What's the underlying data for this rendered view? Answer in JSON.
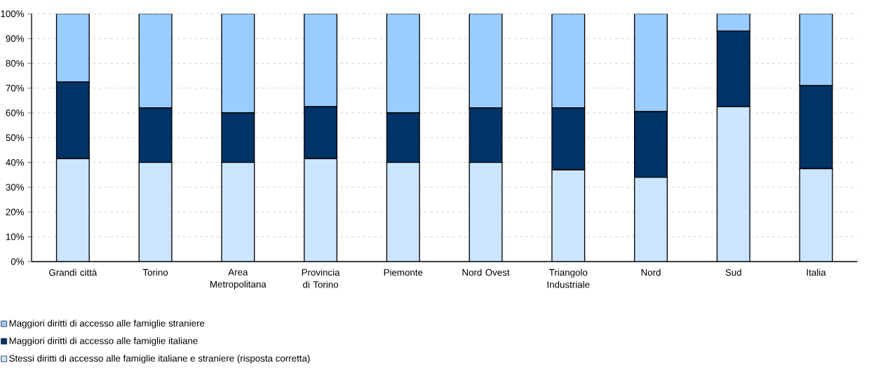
{
  "chart_data": {
    "type": "bar",
    "stacked": true,
    "categories": [
      "Grandi città",
      "Torino",
      "Area Metropolitana",
      "Provincia di Torino",
      "Piemonte",
      "Nord Ovest",
      "Triangolo Industriale",
      "Nord",
      "Sud",
      "Italia"
    ],
    "series": [
      {
        "name": "Stessi diritti di accesso alle famiglie italiane e straniere (risposta corretta)",
        "color": "#cce5ff",
        "values": [
          41.5,
          40,
          40,
          41.5,
          40,
          40,
          37,
          34,
          62.5,
          37.5
        ]
      },
      {
        "name": "Maggiori diritti di accesso alle famiglie italiane",
        "color": "#003366",
        "values": [
          31,
          22,
          20,
          21,
          20,
          22,
          25,
          26.5,
          30.5,
          33.5
        ]
      },
      {
        "name": "Maggiori diritti di accesso alle famiglie straniere",
        "color": "#99ccff",
        "values": [
          27.5,
          38,
          40,
          37.5,
          40,
          38,
          38,
          39.5,
          7,
          29
        ]
      }
    ],
    "ylim": [
      0,
      100
    ],
    "yticks": [
      {
        "value": 0,
        "label": "0%"
      },
      {
        "value": 10,
        "label": "10%"
      },
      {
        "value": 20,
        "label": "20%"
      },
      {
        "value": 30,
        "label": "30%"
      },
      {
        "value": 40,
        "label": "40%"
      },
      {
        "value": 50,
        "label": "50%"
      },
      {
        "value": 60,
        "label": "60%"
      },
      {
        "value": 70,
        "label": "70%"
      },
      {
        "value": 80,
        "label": "80%"
      },
      {
        "value": 90,
        "label": "90%"
      },
      {
        "value": 100,
        "label": "100%"
      }
    ],
    "grid": "y",
    "legend": "bottom"
  }
}
